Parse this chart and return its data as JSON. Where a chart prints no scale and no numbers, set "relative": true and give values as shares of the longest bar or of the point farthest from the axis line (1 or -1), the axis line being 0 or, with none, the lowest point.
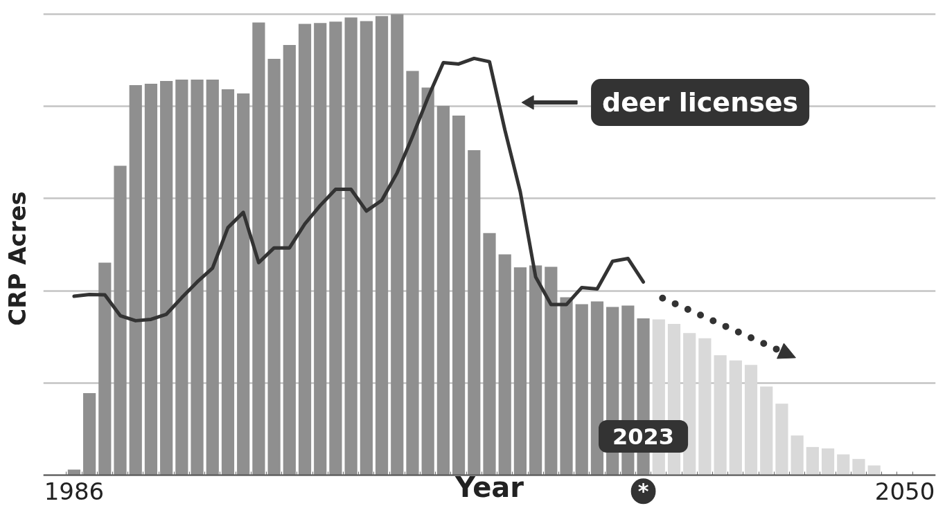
{
  "chart_data": {
    "type": "bar",
    "relative": true,
    "xlabel": "Year",
    "ylabel": "CRP Acres",
    "grid": "y",
    "categories": [
      "1986",
      null,
      null,
      null,
      null,
      null,
      null,
      null,
      null,
      null,
      null,
      null,
      null,
      null,
      null,
      null,
      null,
      null,
      null,
      null,
      null,
      null,
      null,
      null,
      null,
      null,
      null,
      null,
      null,
      null,
      null,
      null,
      null,
      null,
      null,
      null,
      null,
      null,
      null,
      null,
      null,
      null,
      null,
      null,
      null,
      null,
      null,
      null,
      null,
      null,
      null,
      null,
      null,
      null,
      "2050"
    ],
    "series": [
      {
        "values": [
          0.012,
          0.178,
          0.461,
          0.671,
          0.846,
          0.849,
          0.855,
          0.858,
          0.858,
          0.858,
          0.837,
          0.828,
          0.982,
          0.903,
          0.933,
          0.979,
          0.981,
          0.984,
          0.993,
          0.985,
          0.996,
          1,
          0.877,
          0.841,
          0.801,
          0.78,
          0.705,
          0.525,
          0.479,
          0.451,
          0.455,
          0.452,
          0.386,
          0.371,
          0.377,
          0.365,
          0.368,
          0.34,
          0.338,
          0.328,
          0.308,
          0.297,
          0.26,
          0.249,
          0.239,
          0.192,
          0.155,
          0.086,
          0.061,
          0.058,
          0.045,
          0.035,
          0.021,
          null,
          null
        ],
        "colors": [
          "#8f8f8f",
          "#8f8f8f",
          "#8f8f8f",
          "#8f8f8f",
          "#8f8f8f",
          "#8f8f8f",
          "#8f8f8f",
          "#8f8f8f",
          "#8f8f8f",
          "#8f8f8f",
          "#8f8f8f",
          "#8f8f8f",
          "#8f8f8f",
          "#8f8f8f",
          "#8f8f8f",
          "#8f8f8f",
          "#8f8f8f",
          "#8f8f8f",
          "#8f8f8f",
          "#8f8f8f",
          "#8f8f8f",
          "#8f8f8f",
          "#8f8f8f",
          "#8f8f8f",
          "#8f8f8f",
          "#8f8f8f",
          "#8f8f8f",
          "#8f8f8f",
          "#8f8f8f",
          "#8f8f8f",
          "#8f8f8f",
          "#8f8f8f",
          "#8f8f8f",
          "#8f8f8f",
          "#8f8f8f",
          "#8f8f8f",
          "#8f8f8f",
          "#8f8f8f",
          "#d9d9d9",
          "#d9d9d9",
          "#d9d9d9",
          "#d9d9d9",
          "#d9d9d9",
          "#d9d9d9",
          "#d9d9d9",
          "#d9d9d9",
          "#d9d9d9",
          "#d9d9d9",
          "#d9d9d9",
          "#d9d9d9",
          "#d9d9d9",
          "#d9d9d9",
          "#d9d9d9",
          "#d9d9d9",
          "#d9d9d9"
        ]
      },
      {
        "type": "line",
        "name": "deer licenses",
        "color": "#333333",
        "values": [
          0.388,
          0.392,
          0.391,
          0.346,
          0.335,
          0.338,
          0.349,
          0.385,
          0.419,
          0.449,
          0.537,
          0.57,
          0.461,
          0.493,
          0.493,
          0.545,
          0.585,
          0.62,
          0.62,
          0.573,
          0.596,
          0.656,
          0.735,
          0.819,
          0.895,
          0.892,
          0.904,
          0.897,
          0.749,
          0.615,
          0.43,
          0.37,
          0.37,
          0.407,
          0.404,
          0.464,
          0.47,
          0.419,
          null,
          null,
          null,
          null,
          null,
          null,
          null,
          null,
          null,
          null,
          null,
          null,
          null,
          null,
          null,
          null,
          null
        ]
      }
    ],
    "annotations": [
      "2023",
      "*"
    ]
  }
}
